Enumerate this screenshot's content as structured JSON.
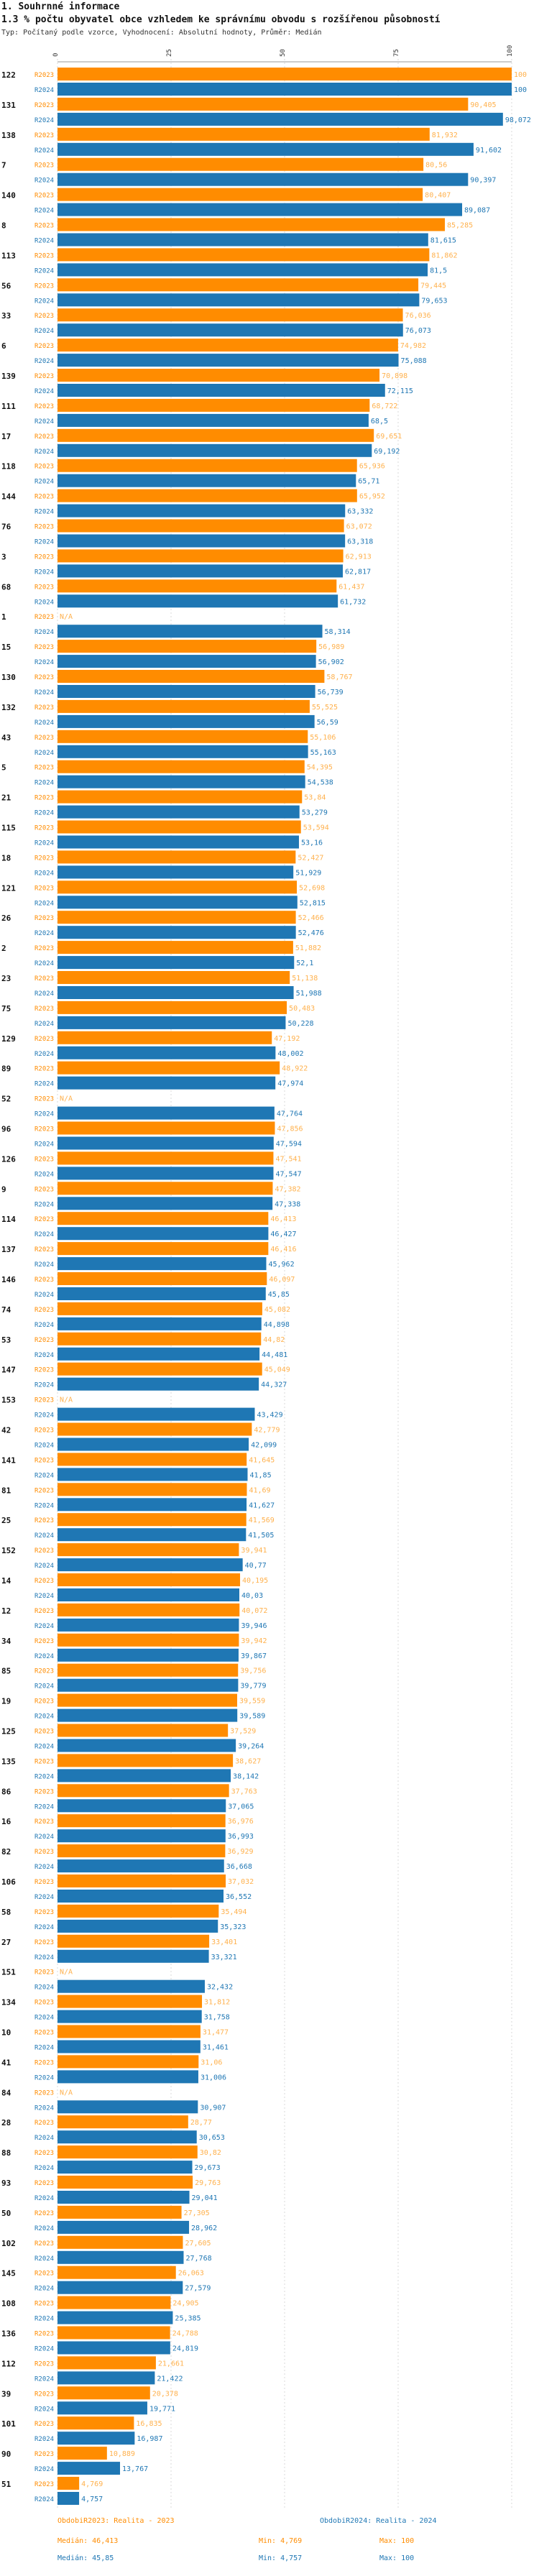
{
  "header": {
    "title": "1. Souhrnné informace",
    "subtitle": "1.3 % počtu obyvatel obce vzhledem ke správnímu obvodu s rozšířenou působností",
    "note": "Typ: Počítaný podle vzorce, Vyhodnocení: Absolutní hodnoty, Průměr: Medián"
  },
  "colors": {
    "series_2023": "#ff8c00",
    "series_2024": "#1f77b4",
    "value_2023": "#ffb14d"
  },
  "chart_data": {
    "type": "bar",
    "orientation": "horizontal",
    "xlim": [
      0,
      100
    ],
    "x_ticks": [
      0,
      25,
      50,
      75,
      100
    ],
    "categories": [
      "122",
      "131",
      "138",
      "7",
      "140",
      "8",
      "113",
      "56",
      "33",
      "6",
      "139",
      "111",
      "17",
      "118",
      "144",
      "76",
      "3",
      "68",
      "1",
      "15",
      "130",
      "132",
      "43",
      "5",
      "21",
      "115",
      "18",
      "121",
      "26",
      "2",
      "23",
      "75",
      "129",
      "89",
      "52",
      "96",
      "126",
      "9",
      "114",
      "137",
      "146",
      "74",
      "53",
      "147",
      "153",
      "42",
      "141",
      "81",
      "25",
      "152",
      "14",
      "12",
      "34",
      "85",
      "19",
      "125",
      "135",
      "86",
      "16",
      "82",
      "106",
      "58",
      "27",
      "151",
      "134",
      "10",
      "41",
      "84",
      "28",
      "88",
      "93",
      "50",
      "102",
      "145",
      "108",
      "136",
      "112",
      "39",
      "101",
      "90",
      "51"
    ],
    "series": [
      {
        "name": "R2023",
        "values": [
          100,
          90.405,
          81.932,
          80.56,
          80.407,
          85.285,
          81.862,
          79.445,
          76.036,
          74.982,
          70.898,
          68.722,
          69.651,
          65.936,
          65.952,
          63.072,
          62.913,
          61.437,
          null,
          56.989,
          58.767,
          55.525,
          55.106,
          54.395,
          53.84,
          53.594,
          52.427,
          52.698,
          52.466,
          51.882,
          51.138,
          50.483,
          47.192,
          48.922,
          null,
          47.856,
          47.541,
          47.382,
          46.413,
          46.416,
          46.097,
          45.082,
          44.82,
          45.049,
          null,
          42.779,
          41.645,
          41.69,
          41.569,
          39.941,
          40.195,
          40.072,
          39.942,
          39.756,
          39.559,
          37.529,
          38.627,
          37.763,
          36.976,
          36.929,
          37.032,
          35.494,
          33.401,
          null,
          31.812,
          31.477,
          31.06,
          null,
          28.77,
          30.82,
          29.763,
          27.305,
          27.605,
          26.063,
          24.905,
          24.788,
          21.661,
          20.378,
          16.835,
          10.889,
          4.769
        ]
      },
      {
        "name": "R2024",
        "values": [
          100,
          98.072,
          91.602,
          90.397,
          89.087,
          81.615,
          81.5,
          79.653,
          76.073,
          75.088,
          72.115,
          68.5,
          69.192,
          65.71,
          63.332,
          63.318,
          62.817,
          61.732,
          58.314,
          56.902,
          56.739,
          56.59,
          55.163,
          54.538,
          53.279,
          53.16,
          51.929,
          52.815,
          52.476,
          52.1,
          51.988,
          50.228,
          48.002,
          47.974,
          47.764,
          47.594,
          47.547,
          47.338,
          46.427,
          45.962,
          45.85,
          44.898,
          44.481,
          44.327,
          43.429,
          42.099,
          41.85,
          41.627,
          41.505,
          40.77,
          40.03,
          39.946,
          39.867,
          39.779,
          39.589,
          39.264,
          38.142,
          37.065,
          36.993,
          36.668,
          36.552,
          35.323,
          33.321,
          32.432,
          31.758,
          31.461,
          31.006,
          30.907,
          30.653,
          29.673,
          29.041,
          28.962,
          27.768,
          27.579,
          25.385,
          24.819,
          21.422,
          19.771,
          16.987,
          13.767,
          4.757
        ]
      }
    ],
    "value_labels_2023": [
      "100",
      "90,405",
      "81,932",
      "80,56",
      "80,407",
      "85,285",
      "81,862",
      "79,445",
      "76,036",
      "74,982",
      "70,898",
      "68,722",
      "69,651",
      "65,936",
      "65,952",
      "63,072",
      "62,913",
      "61,437",
      "N/A",
      "56,989",
      "58,767",
      "55,525",
      "55,106",
      "54,395",
      "53,84",
      "53,594",
      "52,427",
      "52,698",
      "52,466",
      "51,882",
      "51,138",
      "50,483",
      "47,192",
      "48,922",
      "N/A",
      "47,856",
      "47,541",
      "47,382",
      "46,413",
      "46,416",
      "46,097",
      "45,082",
      "44,82",
      "45,049",
      "N/A",
      "42,779",
      "41,645",
      "41,69",
      "41,569",
      "39,941",
      "40,195",
      "40,072",
      "39,942",
      "39,756",
      "39,559",
      "37,529",
      "38,627",
      "37,763",
      "36,976",
      "36,929",
      "37,032",
      "35,494",
      "33,401",
      "N/A",
      "31,812",
      "31,477",
      "31,06",
      "N/A",
      "28,77",
      "30,82",
      "29,763",
      "27,305",
      "27,605",
      "26,063",
      "24,905",
      "24,788",
      "21,661",
      "20,378",
      "16,835",
      "10,889",
      "4,769"
    ],
    "value_labels_2024": [
      "100",
      "98,072",
      "91,602",
      "90,397",
      "89,087",
      "81,615",
      "81,5",
      "79,653",
      "76,073",
      "75,088",
      "72,115",
      "68,5",
      "69,192",
      "65,71",
      "63,332",
      "63,318",
      "62,817",
      "61,732",
      "58,314",
      "56,902",
      "56,739",
      "56,59",
      "55,163",
      "54,538",
      "53,279",
      "53,16",
      "51,929",
      "52,815",
      "52,476",
      "52,1",
      "51,988",
      "50,228",
      "48,002",
      "47,974",
      "47,764",
      "47,594",
      "47,547",
      "47,338",
      "46,427",
      "45,962",
      "45,85",
      "44,898",
      "44,481",
      "44,327",
      "43,429",
      "42,099",
      "41,85",
      "41,627",
      "41,505",
      "40,77",
      "40,03",
      "39,946",
      "39,867",
      "39,779",
      "39,589",
      "39,264",
      "38,142",
      "37,065",
      "36,993",
      "36,668",
      "36,552",
      "35,323",
      "33,321",
      "32,432",
      "31,758",
      "31,461",
      "31,006",
      "30,907",
      "30,653",
      "29,673",
      "29,041",
      "28,962",
      "27,768",
      "27,579",
      "25,385",
      "24,819",
      "21,422",
      "19,771",
      "16,987",
      "13,767",
      "4,757"
    ],
    "legend": [
      {
        "label": "ObdobiR2023: Realita - 2023",
        "median": "Medián: 46,413",
        "min": "Min: 4,769",
        "max": "Max: 100"
      },
      {
        "label": "ObdobiR2024: Realita - 2024",
        "median": "Medián: 45,85",
        "min": "Min: 4,757",
        "max": "Max: 100"
      }
    ]
  }
}
